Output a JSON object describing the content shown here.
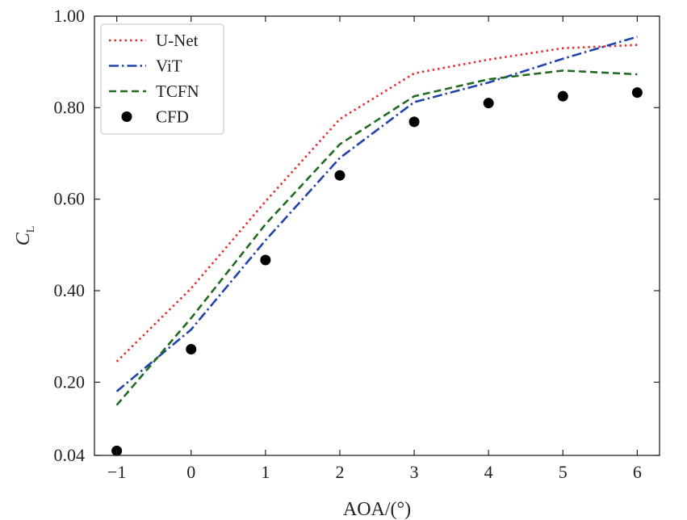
{
  "chart_data": {
    "type": "line",
    "title": "",
    "xlabel": "AOA/(°)",
    "ylabel_main": "C",
    "ylabel_sub": "L",
    "xlim": [
      -1.3,
      6.3
    ],
    "ylim": [
      0.04,
      1.0
    ],
    "xticks": [
      -1,
      0,
      1,
      2,
      3,
      4,
      5,
      6
    ],
    "xtick_labels": [
      "−1",
      "0",
      "1",
      "2",
      "3",
      "4",
      "5",
      "6"
    ],
    "yticks": [
      0.04,
      0.2,
      0.4,
      0.6,
      0.8,
      1.0
    ],
    "ytick_labels": [
      "0.04",
      "0.20",
      "0.40",
      "0.60",
      "0.80",
      "1.00"
    ],
    "legend_position": "top-left",
    "x": [
      -1,
      0,
      1,
      2,
      3,
      4,
      5,
      6
    ],
    "series": [
      {
        "name": "U-Net",
        "color": "#e03030",
        "style": "dotted",
        "values": [
          0.245,
          0.405,
          0.595,
          0.775,
          0.875,
          0.905,
          0.93,
          0.937
        ]
      },
      {
        "name": "ViT",
        "color": "#2244aa",
        "style": "dashdot",
        "values": [
          0.18,
          0.315,
          0.51,
          0.69,
          0.812,
          0.855,
          0.907,
          0.955
        ]
      },
      {
        "name": "TCFN",
        "color": "#1f6b20",
        "style": "dashed",
        "values": [
          0.15,
          0.34,
          0.545,
          0.72,
          0.825,
          0.862,
          0.881,
          0.873
        ]
      },
      {
        "name": "CFD",
        "color": "#000000",
        "style": "marker",
        "values": [
          0.05,
          0.272,
          0.467,
          0.652,
          0.769,
          0.81,
          0.825,
          0.833
        ]
      }
    ]
  }
}
